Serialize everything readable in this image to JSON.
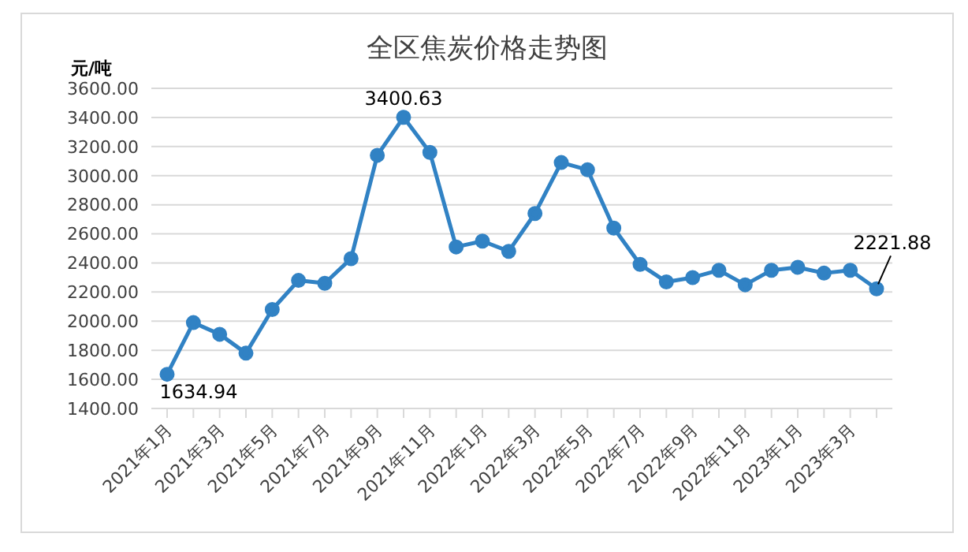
{
  "chart_data": {
    "type": "line",
    "title": "全区焦炭价格走势图",
    "ylabel": "元/吨",
    "categories": [
      "2021年1月",
      null,
      "2021年3月",
      null,
      "2021年5月",
      null,
      "2021年7月",
      null,
      "2021年9月",
      null,
      "2021年11月",
      null,
      "2022年1月",
      null,
      "2022年3月",
      null,
      "2022年5月",
      null,
      "2022年7月",
      null,
      "2022年9月",
      null,
      "2022年11月",
      null,
      "2023年1月",
      null,
      "2023年3月",
      null
    ],
    "series": [
      {
        "color": "#3182c4",
        "values": [
          1634.94,
          1990,
          1910,
          1780,
          2080,
          2280,
          2260,
          2430,
          3140,
          3400.63,
          3160,
          2510,
          2550,
          2480,
          2740,
          3090,
          3040,
          2640,
          2390,
          2270,
          2300,
          2350,
          2250,
          2350,
          2370,
          2330,
          2350,
          2221.88
        ],
        "value_labels": [
          "1634.94",
          null,
          null,
          null,
          null,
          null,
          null,
          null,
          null,
          "3400.63",
          null,
          null,
          null,
          null,
          null,
          null,
          null,
          null,
          null,
          null,
          null,
          null,
          null,
          null,
          null,
          null,
          null,
          "2221.88"
        ]
      }
    ],
    "ylim": [
      1400,
      3600
    ],
    "yticks": [
      {
        "value": 1400,
        "label": "1400.00"
      },
      {
        "value": 1600,
        "label": "1600.00"
      },
      {
        "value": 1800,
        "label": "1800.00"
      },
      {
        "value": 2000,
        "label": "2000.00"
      },
      {
        "value": 2200,
        "label": "2200.00"
      },
      {
        "value": 2400,
        "label": "2400.00"
      },
      {
        "value": 2600,
        "label": "2600.00"
      },
      {
        "value": 2800,
        "label": "2800.00"
      },
      {
        "value": 3000,
        "label": "3000.00"
      },
      {
        "value": 3200,
        "label": "3200.00"
      },
      {
        "value": 3400,
        "label": "3400.00"
      },
      {
        "value": 3600,
        "label": "3600.00"
      }
    ],
    "grid": "y",
    "marker": "circle",
    "line_style": "solid"
  }
}
